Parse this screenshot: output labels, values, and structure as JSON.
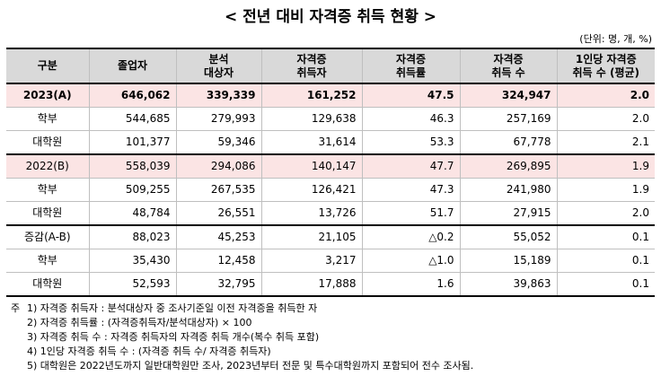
{
  "title": "< 전년 대비 자격증 취득 현황 >",
  "unit": "(단위: 명, 개, %)",
  "headers": [
    "구분",
    "졸업자",
    "분석\n대상자",
    "자격증\n취득자",
    "자격증\n취득률",
    "자격증\n취득 수",
    "1인당 자격증\n취득 수 (평균)"
  ],
  "rows": [
    {
      "label": "2023(A)",
      "values": [
        "646,062",
        "339,339",
        "161,252",
        "47.5",
        "324,947",
        "2.0"
      ]
    },
    {
      "label": "학부",
      "values": [
        "544,685",
        "279,993",
        "129,638",
        "46.3",
        "257,169",
        "2.0"
      ]
    },
    {
      "label": "대학원",
      "values": [
        "101,377",
        "59,346",
        "31,614",
        "53.3",
        "67,778",
        "2.1"
      ]
    },
    {
      "label": "2022(B)",
      "values": [
        "558,039",
        "294,086",
        "140,147",
        "47.7",
        "269,895",
        "1.9"
      ]
    },
    {
      "label": "학부",
      "values": [
        "509,255",
        "267,535",
        "126,421",
        "47.3",
        "241,980",
        "1.9"
      ]
    },
    {
      "label": "대학원",
      "values": [
        "48,784",
        "26,551",
        "13,726",
        "51.7",
        "27,915",
        "2.0"
      ]
    },
    {
      "label": "증감(A-B)",
      "values": [
        "88,023",
        "45,253",
        "21,105",
        "△0.2",
        "55,052",
        "0.1"
      ]
    },
    {
      "label": "학부",
      "values": [
        "35,430",
        "12,458",
        "3,217",
        "△1.0",
        "15,189",
        "0.1"
      ]
    },
    {
      "label": "대학원",
      "values": [
        "52,593",
        "32,795",
        "17,888",
        "1.6",
        "39,863",
        "0.1"
      ]
    }
  ],
  "notes": [
    {
      "prefix": "주",
      "text": "1) 자격증 취득자 : 분석대상자 중 조사기준일 이전 자격증을 취득한 자"
    },
    {
      "prefix": "",
      "text": "2) 자격증 취득률 : (자격증취득자/분석대상자) × 100"
    },
    {
      "prefix": "",
      "text": "3) 자격증 취득 수 : 자격증 취득자의 자격증 취득 개수(복수 취득 포함)"
    },
    {
      "prefix": "",
      "text": "4) 1인당 자격증 취득 수 : (자격증 취득 수/ 자격증 취득자)"
    },
    {
      "prefix": "",
      "text": "5) 대학원은 2022년도까지 일반대학원만 조사, 2023년부터 전문 및 특수대학원까지 포함되어 전수 조사됨."
    }
  ]
}
